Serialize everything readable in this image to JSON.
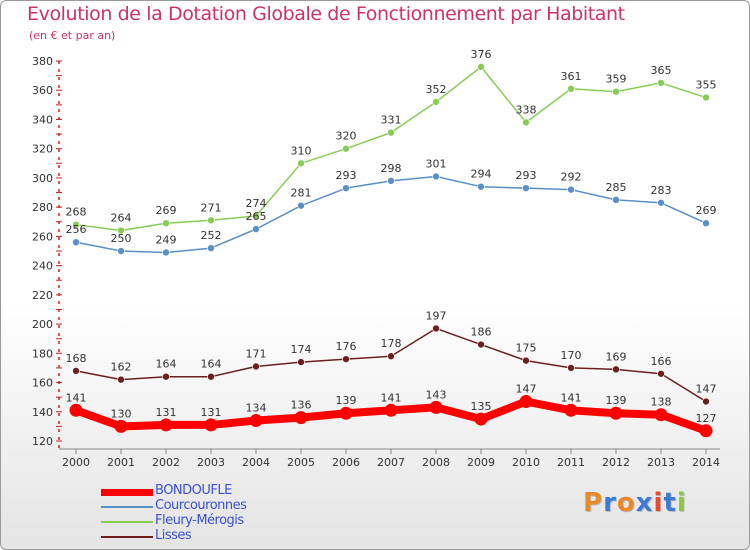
{
  "chart": {
    "title": "Evolution de la Dotation Globale de Fonctionnement par Habitant",
    "subtitle": "(en € et par an)"
  },
  "brand": {
    "text": "Proxiti",
    "letter_colors": [
      "#e8892a",
      "#3a7bd5",
      "#e8892a",
      "#3a7bd5",
      "#e84a2a",
      "#3a7bd5",
      "#8cc63f"
    ]
  },
  "chart_data": {
    "type": "line",
    "title": "Evolution de la Dotation Globale de Fonctionnement par Habitant",
    "subtitle": "(en € et par an)",
    "xlabel": "",
    "ylabel": "",
    "x": [
      "2000",
      "2001",
      "2002",
      "2003",
      "2004",
      "2005",
      "2006",
      "2007",
      "2008",
      "2009",
      "2010",
      "2011",
      "2012",
      "2013",
      "2014"
    ],
    "ylim": [
      120,
      380
    ],
    "yticks": [
      120,
      140,
      160,
      180,
      200,
      220,
      240,
      260,
      280,
      300,
      320,
      340,
      360,
      380
    ],
    "grid": false,
    "legend_position": "bottom-left",
    "series": [
      {
        "name": "Lisses",
        "color": "#6b1f1f",
        "highlight": false,
        "values": [
          168,
          162,
          164,
          164,
          171,
          174,
          176,
          178,
          197,
          186,
          175,
          170,
          169,
          166,
          147
        ]
      },
      {
        "name": "Fleury-Mérogis",
        "color": "#88cc55",
        "highlight": false,
        "values": [
          268,
          264,
          269,
          271,
          274,
          310,
          320,
          331,
          352,
          376,
          338,
          361,
          359,
          365,
          355
        ]
      },
      {
        "name": "Courcouronnes",
        "color": "#5a90c8",
        "highlight": false,
        "values": [
          256,
          250,
          249,
          252,
          265,
          281,
          293,
          298,
          301,
          294,
          293,
          292,
          285,
          283,
          269
        ]
      },
      {
        "name": "BONDOUFLE",
        "color": "#ff0000",
        "highlight": true,
        "values": [
          141,
          130,
          131,
          131,
          134,
          136,
          139,
          141,
          143,
          135,
          147,
          141,
          139,
          138,
          127
        ]
      }
    ],
    "legend_order": [
      "BONDOUFLE",
      "Courcouronnes",
      "Fleury-Mérogis",
      "Lisses"
    ]
  }
}
